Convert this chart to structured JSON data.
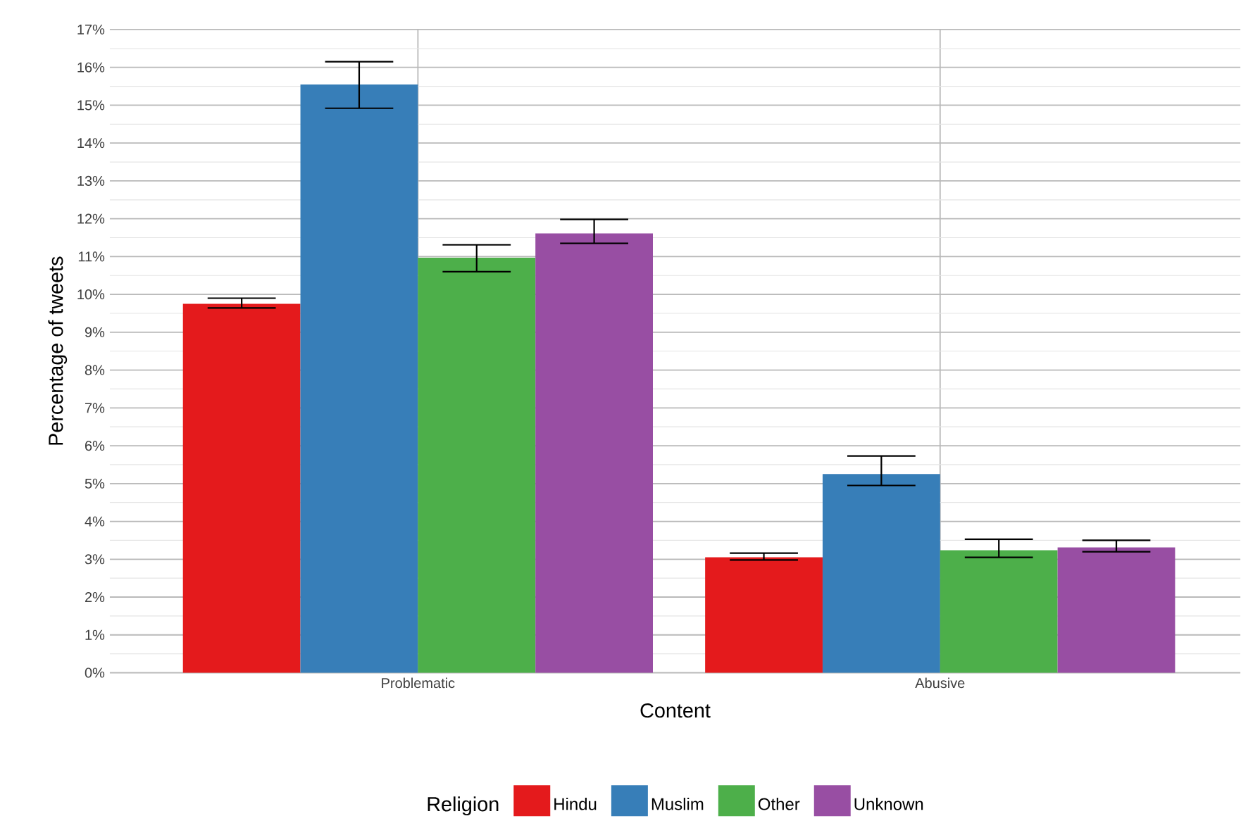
{
  "chart_data": {
    "type": "bar",
    "xlabel": "Content",
    "ylabel": "Percentage of tweets",
    "legend_title": "Religion",
    "categories": [
      "Problematic",
      "Abusive"
    ],
    "series": [
      {
        "name": "Hindu",
        "color": "#e41a1c",
        "values": [
          9.75,
          3.05
        ],
        "errors": [
          [
            9.64,
            9.9
          ],
          [
            2.98,
            3.16
          ]
        ]
      },
      {
        "name": "Muslim",
        "color": "#377eb8",
        "values": [
          15.55,
          5.25
        ],
        "errors": [
          [
            14.92,
            16.15
          ],
          [
            4.95,
            5.73
          ]
        ]
      },
      {
        "name": "Other",
        "color": "#4daf4a",
        "values": [
          10.97,
          3.24
        ],
        "errors": [
          [
            10.6,
            11.31
          ],
          [
            3.05,
            3.53
          ]
        ]
      },
      {
        "name": "Unknown",
        "color": "#984ea3",
        "values": [
          11.61,
          3.31
        ],
        "errors": [
          [
            11.35,
            11.98
          ],
          [
            3.2,
            3.5
          ]
        ]
      }
    ],
    "ylim": [
      0,
      17
    ],
    "yticks": [
      {
        "value": 0,
        "label": "0%"
      },
      {
        "value": 1,
        "label": "1%"
      },
      {
        "value": 2,
        "label": "2%"
      },
      {
        "value": 3,
        "label": "3%"
      },
      {
        "value": 4,
        "label": "4%"
      },
      {
        "value": 5,
        "label": "5%"
      },
      {
        "value": 6,
        "label": "6%"
      },
      {
        "value": 7,
        "label": "7%"
      },
      {
        "value": 8,
        "label": "8%"
      },
      {
        "value": 9,
        "label": "9%"
      },
      {
        "value": 10,
        "label": "10%"
      },
      {
        "value": 11,
        "label": "11%"
      },
      {
        "value": 12,
        "label": "12%"
      },
      {
        "value": 13,
        "label": "13%"
      },
      {
        "value": 14,
        "label": "14%"
      },
      {
        "value": 15,
        "label": "15%"
      },
      {
        "value": 16,
        "label": "16%"
      },
      {
        "value": 17,
        "label": "17%"
      }
    ],
    "grid": true,
    "legend": "bottom"
  }
}
